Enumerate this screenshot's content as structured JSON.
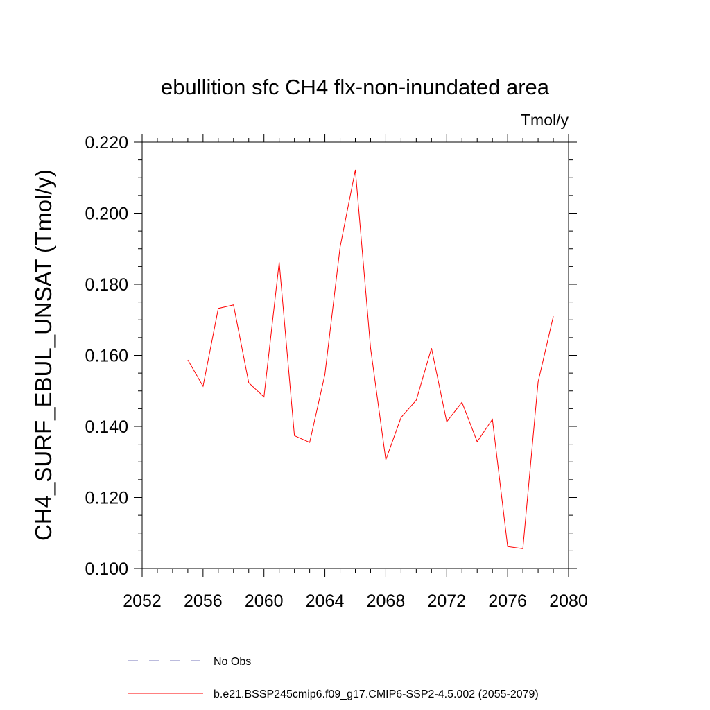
{
  "chart_data": {
    "type": "line",
    "title": "ebullition sfc CH4 flx-non-inundated area",
    "units_label": "Tmol/y",
    "xlabel": "",
    "ylabel": "CH4_SURF_EBUL_UNSAT  (Tmol/y)",
    "xlim": [
      2052,
      2080
    ],
    "ylim": [
      0.1,
      0.22
    ],
    "x_ticks": [
      2052,
      2056,
      2060,
      2064,
      2068,
      2072,
      2076,
      2080
    ],
    "x_tick_labels": [
      "2052",
      "2056",
      "2060",
      "2064",
      "2068",
      "2072",
      "2076",
      "2080"
    ],
    "y_ticks": [
      0.1,
      0.12,
      0.14,
      0.16,
      0.18,
      0.2,
      0.22
    ],
    "y_tick_labels": [
      "0.100",
      "0.120",
      "0.140",
      "0.160",
      "0.180",
      "0.200",
      "0.220"
    ],
    "grid": false,
    "legend_position": "bottom",
    "series": [
      {
        "name": "b.e21.BSSP245cmip6.f09_g17.CMIP6-SSP2-4.5.002 (2055-2079)",
        "color": "#ff0000",
        "style": "solid",
        "x": [
          2055,
          2056,
          2057,
          2058,
          2059,
          2060,
          2061,
          2062,
          2063,
          2064,
          2065,
          2066,
          2067,
          2068,
          2069,
          2070,
          2071,
          2072,
          2073,
          2074,
          2075,
          2076,
          2077,
          2078,
          2079
        ],
        "values": [
          0.1587,
          0.1513,
          0.1732,
          0.1742,
          0.1523,
          0.1483,
          0.1862,
          0.1374,
          0.1355,
          0.1546,
          0.1905,
          0.2122,
          0.162,
          0.1306,
          0.1425,
          0.1474,
          0.162,
          0.1413,
          0.1468,
          0.1357,
          0.142,
          0.1062,
          0.1056,
          0.1525,
          0.171
        ]
      },
      {
        "name": "No Obs",
        "color": "#7777bb",
        "style": "dashed",
        "x": [],
        "values": []
      }
    ]
  }
}
